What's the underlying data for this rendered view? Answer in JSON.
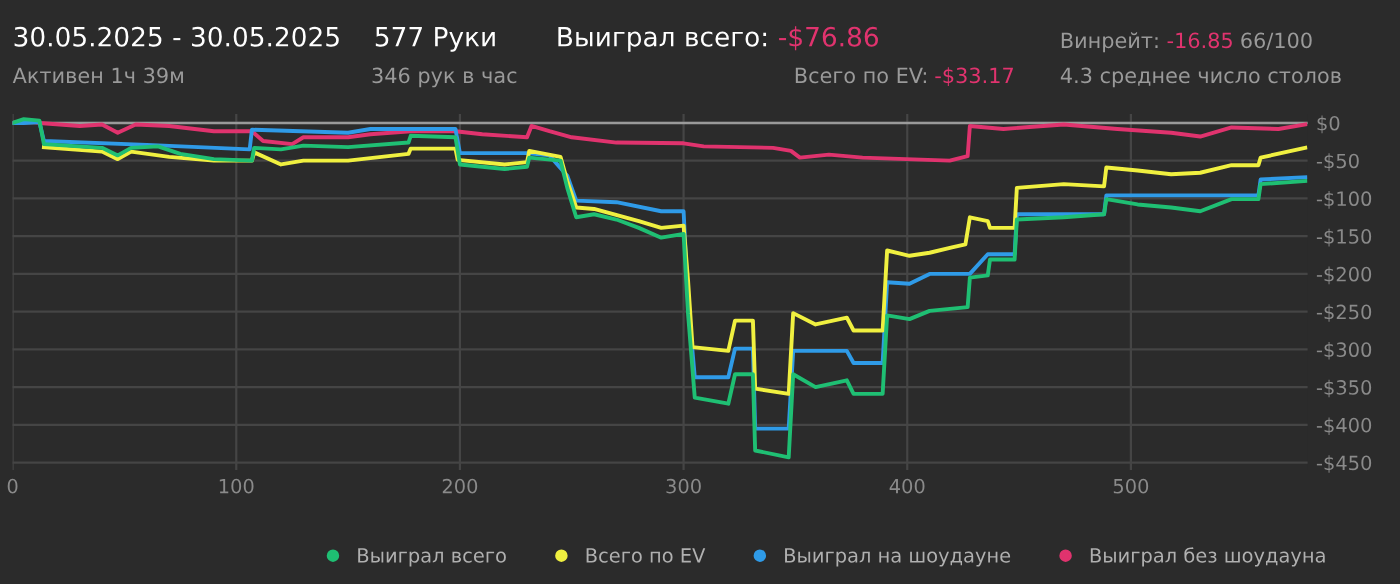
{
  "chart_data": {
    "type": "line",
    "title": "30.05.2025 - 30.05.2025",
    "subtitle": "Активен 1ч 39м",
    "annotations": [
      "577 Руки",
      "346 рук в час",
      "Выиграл всего:",
      "-$76.86",
      "Всего по EV:",
      "-$33.17",
      "Винрейт:",
      "-16.85",
      "66/100",
      "4.3 среднее число столов"
    ],
    "xlim": [
      0,
      579
    ],
    "xticks": [
      0,
      100,
      200,
      300,
      400,
      500
    ],
    "ylim": [
      -460,
      12
    ],
    "yticks": [
      {
        "value": 0,
        "label": "$0"
      },
      {
        "value": -50,
        "label": "-$50"
      },
      {
        "value": -100,
        "label": "-$100"
      },
      {
        "value": -150,
        "label": "-$150"
      },
      {
        "value": -200,
        "label": "-$200"
      },
      {
        "value": -250,
        "label": "-$250"
      },
      {
        "value": -300,
        "label": "-$300"
      },
      {
        "value": -350,
        "label": "-$350"
      },
      {
        "value": -400,
        "label": "-$400"
      },
      {
        "value": -450,
        "label": "-$450"
      }
    ],
    "grid": true,
    "legend": "bottom right",
    "marker": "none",
    "line_style": "solid",
    "series": [
      {
        "name": "Выиграл всего",
        "color": "#1fbf73",
        "x": [
          0,
          5,
          12,
          14,
          40,
          47,
          53,
          65,
          75,
          90,
          107,
          108,
          120,
          130,
          150,
          177,
          178,
          198,
          200,
          220,
          230,
          231,
          245,
          248,
          252,
          260,
          270,
          280,
          290,
          300,
          302,
          305,
          320,
          323,
          331,
          332,
          347,
          349,
          359,
          373,
          376,
          389,
          391,
          401,
          410,
          427,
          428,
          436,
          437,
          448,
          449,
          470,
          488,
          489,
          503,
          518,
          531,
          545,
          557,
          558,
          578
        ],
        "values": [
          0,
          5,
          3,
          -28,
          -33,
          -43,
          -33,
          -31,
          -41,
          -48,
          -50,
          -33,
          -35,
          -30,
          -32,
          -26,
          -17,
          -19,
          -55,
          -61,
          -58,
          -46,
          -50,
          -86,
          -125,
          -121,
          -128,
          -139,
          -152,
          -147,
          -253,
          -364,
          -372,
          -333,
          -333,
          -434,
          -443,
          -333,
          -350,
          -341,
          -359,
          -359,
          -255,
          -260,
          -249,
          -244,
          -205,
          -202,
          -181,
          -181,
          -128,
          -125,
          -121,
          -101,
          -108,
          -112,
          -117,
          -101,
          -101,
          -81,
          -77
        ]
      },
      {
        "name": "Всего по EV",
        "color": "#f0f040",
        "x": [
          14,
          40,
          47,
          53,
          70,
          90,
          107,
          108,
          120,
          130,
          150,
          177,
          178,
          198,
          199,
          220,
          230,
          231,
          245,
          248,
          252,
          260,
          280,
          290,
          300,
          302,
          304,
          320,
          323,
          331,
          332,
          347,
          349,
          359,
          373,
          376,
          389,
          391,
          401,
          410,
          420,
          426,
          428,
          436,
          437,
          448,
          449,
          470,
          488,
          489,
          503,
          518,
          531,
          545,
          557,
          558,
          578
        ],
        "values": [
          -32,
          -38,
          -48,
          -38,
          -45,
          -50,
          -50,
          -39,
          -55,
          -50,
          -50,
          -41,
          -34,
          -34,
          -49,
          -55,
          -52,
          -37,
          -45,
          -77,
          -112,
          -114,
          -130,
          -139,
          -136,
          -209,
          -297,
          -302,
          -262,
          -262,
          -352,
          -359,
          -252,
          -267,
          -258,
          -275,
          -275,
          -169,
          -176,
          -172,
          -165,
          -161,
          -125,
          -130,
          -139,
          -139,
          -86,
          -81,
          -84,
          -59,
          -63,
          -68,
          -66,
          -56,
          -56,
          -46,
          -33
        ]
      },
      {
        "name": "Выиграл на шоудауне",
        "color": "#2f9be8",
        "x": [
          0,
          5,
          12,
          14,
          60,
          106,
          107,
          150,
          160,
          198,
          200,
          230,
          240,
          248,
          252,
          270,
          290,
          300,
          302,
          305,
          320,
          323,
          331,
          332,
          347,
          349,
          373,
          376,
          389,
          391,
          401,
          410,
          428,
          436,
          448,
          449,
          488,
          489,
          557,
          558,
          578
        ],
        "values": [
          0,
          0,
          1,
          -24,
          -29,
          -35,
          -9,
          -13,
          -8,
          -8,
          -40,
          -40,
          -43,
          -70,
          -103,
          -105,
          -117,
          -117,
          -236,
          -337,
          -337,
          -299,
          -299,
          -405,
          -405,
          -302,
          -302,
          -318,
          -318,
          -211,
          -213,
          -200,
          -200,
          -174,
          -174,
          -121,
          -121,
          -96,
          -96,
          -75,
          -72
        ]
      },
      {
        "name": "Выиграл без шоудауна",
        "color": "#e0336e",
        "x": [
          0,
          5,
          12,
          30,
          40,
          47,
          55,
          70,
          90,
          107,
          112,
          125,
          130,
          150,
          160,
          178,
          198,
          210,
          230,
          232,
          240,
          250,
          270,
          300,
          309,
          340,
          348,
          352,
          365,
          380,
          419,
          427,
          428,
          443,
          470,
          494,
          518,
          531,
          545,
          566,
          578
        ],
        "values": [
          0,
          3,
          0,
          -4,
          -2,
          -13,
          -2,
          -4,
          -11,
          -11,
          -24,
          -28,
          -19,
          -19,
          -15,
          -11,
          -11,
          -15,
          -19,
          -4,
          -11,
          -19,
          -26,
          -27,
          -31,
          -33,
          -37,
          -46,
          -42,
          -46,
          -50,
          -44,
          -4,
          -8,
          -2,
          -8,
          -13,
          -18,
          -6,
          -8,
          -2
        ]
      }
    ]
  }
}
